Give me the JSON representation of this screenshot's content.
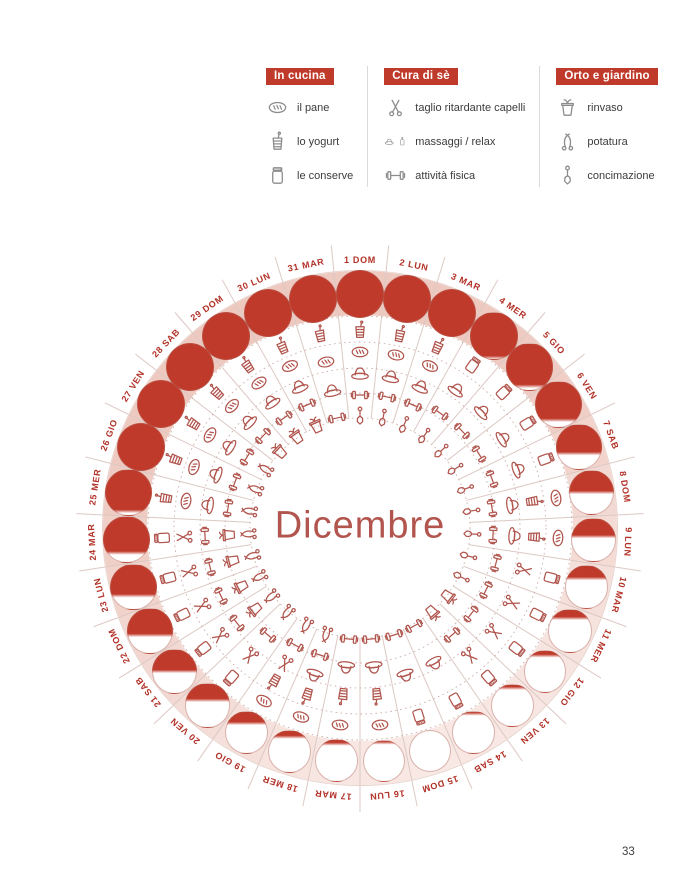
{
  "page": {
    "number": "33"
  },
  "legend": {
    "columns": [
      {
        "title": "In cucina",
        "items": [
          {
            "icons": [
              "pane"
            ],
            "label": "il pane"
          },
          {
            "icons": [
              "yogurt"
            ],
            "label": "lo yogurt"
          },
          {
            "icons": [
              "conserve"
            ],
            "label": "le conserve"
          }
        ]
      },
      {
        "title": "Cura di sè",
        "items": [
          {
            "icons": [
              "taglio"
            ],
            "label": "taglio ritardante capelli"
          },
          {
            "icons": [
              "massaggi",
              "tag"
            ],
            "label": "massaggi / relax"
          },
          {
            "icons": [
              "fisica"
            ],
            "label": "attività fisica"
          }
        ]
      },
      {
        "title": "Orto e giardino",
        "items": [
          {
            "icons": [
              "rinvaso"
            ],
            "label": "rinvaso"
          },
          {
            "icons": [
              "potatura"
            ],
            "label": "potatura"
          },
          {
            "icons": [
              "concimazione"
            ],
            "label": "concimazione"
          }
        ]
      }
    ]
  },
  "wheel": {
    "month": "Dicembre",
    "colors": {
      "accent": "#c03a2b",
      "day_label": "#b23127",
      "icon_stroke": "#b0544c",
      "band_light": "#f8e9e5",
      "band_dark": "#eec9c0",
      "line": "#dcc9c4"
    },
    "days": [
      {
        "num": 1,
        "dow": "DOM",
        "moon": 1.0,
        "icons": [
          "yogurt",
          "pane",
          "massaggi",
          "fisica",
          "concimazione"
        ]
      },
      {
        "num": 2,
        "dow": "LUN",
        "moon": 1.0,
        "icons": [
          "yogurt",
          "pane",
          "massaggi",
          "fisica",
          "concimazione"
        ]
      },
      {
        "num": 3,
        "dow": "MAR",
        "moon": 1.0,
        "icons": [
          "yogurt",
          "pane",
          "massaggi",
          "fisica",
          "concimazione"
        ]
      },
      {
        "num": 4,
        "dow": "MER",
        "moon": 0.97,
        "icons": [
          "conserve",
          "massaggi",
          "fisica",
          "concimazione"
        ]
      },
      {
        "num": 5,
        "dow": "GIO",
        "moon": 0.92,
        "icons": [
          "conserve",
          "massaggi",
          "fisica",
          "concimazione"
        ]
      },
      {
        "num": 6,
        "dow": "VEN",
        "moon": 0.85,
        "icons": [
          "conserve",
          "massaggi",
          "fisica",
          "concimazione"
        ]
      },
      {
        "num": 7,
        "dow": "SAB",
        "moon": 0.65,
        "icons": [
          "conserve",
          "massaggi",
          "fisica",
          "concimazione"
        ]
      },
      {
        "num": 8,
        "dow": "DOM",
        "moon": 0.5,
        "icons": [
          "pane",
          "yogurt",
          "massaggi",
          "fisica",
          "concimazione"
        ]
      },
      {
        "num": 9,
        "dow": "LUN",
        "moon": 0.42,
        "icons": [
          "pane",
          "yogurt",
          "massaggi",
          "fisica",
          "concimazione"
        ]
      },
      {
        "num": 10,
        "dow": "MAR",
        "moon": 0.3,
        "icons": [
          "conserve",
          "taglio",
          "fisica",
          "concimazione"
        ]
      },
      {
        "num": 11,
        "dow": "MER",
        "moon": 0.2,
        "icons": [
          "conserve",
          "taglio",
          "fisica",
          "concimazione"
        ]
      },
      {
        "num": 12,
        "dow": "GIO",
        "moon": 0.12,
        "icons": [
          "conserve",
          "taglio",
          "fisica",
          "rinvaso"
        ]
      },
      {
        "num": 13,
        "dow": "VEN",
        "moon": 0.08,
        "icons": [
          "conserve",
          "taglio",
          "fisica",
          "rinvaso"
        ]
      },
      {
        "num": 14,
        "dow": "SAB",
        "moon": 0.05,
        "icons": [
          "conserve",
          "massaggi",
          "fisica"
        ]
      },
      {
        "num": 15,
        "dow": "DOM",
        "moon": 0.0,
        "icons": [
          "conserve",
          "massaggi",
          "fisica"
        ]
      },
      {
        "num": 16,
        "dow": "LUN",
        "moon": 0.05,
        "icons": [
          "pane",
          "yogurt",
          "massaggi",
          "fisica"
        ]
      },
      {
        "num": 17,
        "dow": "MAR",
        "moon": 0.1,
        "icons": [
          "pane",
          "yogurt",
          "massaggi",
          "fisica"
        ]
      },
      {
        "num": 18,
        "dow": "MER",
        "moon": 0.15,
        "icons": [
          "pane",
          "yogurt",
          "massaggi",
          "fisica",
          "potatura"
        ]
      },
      {
        "num": 19,
        "dow": "GIO",
        "moon": 0.28,
        "icons": [
          "pane",
          "yogurt",
          "taglio",
          "fisica",
          "potatura"
        ]
      },
      {
        "num": 20,
        "dow": "VEN",
        "moon": 0.38,
        "icons": [
          "conserve",
          "taglio",
          "fisica",
          "potatura"
        ]
      },
      {
        "num": 21,
        "dow": "SAB",
        "moon": 0.5,
        "icons": [
          "conserve",
          "taglio",
          "fisica",
          "rinvaso",
          "potatura"
        ]
      },
      {
        "num": 22,
        "dow": "DOM",
        "moon": 0.6,
        "icons": [
          "conserve",
          "taglio",
          "fisica",
          "rinvaso",
          "potatura"
        ]
      },
      {
        "num": 23,
        "dow": "LUN",
        "moon": 0.7,
        "icons": [
          "conserve",
          "taglio",
          "fisica",
          "rinvaso",
          "potatura"
        ]
      },
      {
        "num": 24,
        "dow": "MAR",
        "moon": 0.8,
        "icons": [
          "conserve",
          "taglio",
          "fisica",
          "rinvaso",
          "potatura"
        ]
      },
      {
        "num": 25,
        "dow": "MER",
        "moon": 0.92,
        "icons": [
          "yogurt",
          "pane",
          "massaggi",
          "fisica",
          "potatura"
        ]
      },
      {
        "num": 26,
        "dow": "GIO",
        "moon": 1.0,
        "icons": [
          "yogurt",
          "pane",
          "massaggi",
          "fisica",
          "potatura"
        ]
      },
      {
        "num": 27,
        "dow": "VEN",
        "moon": 1.0,
        "icons": [
          "yogurt",
          "pane",
          "massaggi",
          "fisica",
          "potatura"
        ]
      },
      {
        "num": 28,
        "dow": "SAB",
        "moon": 1.0,
        "icons": [
          "yogurt",
          "pane",
          "massaggi",
          "fisica",
          "rinvaso"
        ]
      },
      {
        "num": 29,
        "dow": "DOM",
        "moon": 1.0,
        "icons": [
          "yogurt",
          "pane",
          "massaggi",
          "fisica",
          "rinvaso"
        ]
      },
      {
        "num": 30,
        "dow": "LUN",
        "moon": 1.0,
        "icons": [
          "yogurt",
          "pane",
          "massaggi",
          "fisica",
          "rinvaso"
        ]
      },
      {
        "num": 31,
        "dow": "MAR",
        "moon": 1.0,
        "icons": [
          "yogurt",
          "pane",
          "massaggi",
          "fisica"
        ]
      }
    ]
  }
}
